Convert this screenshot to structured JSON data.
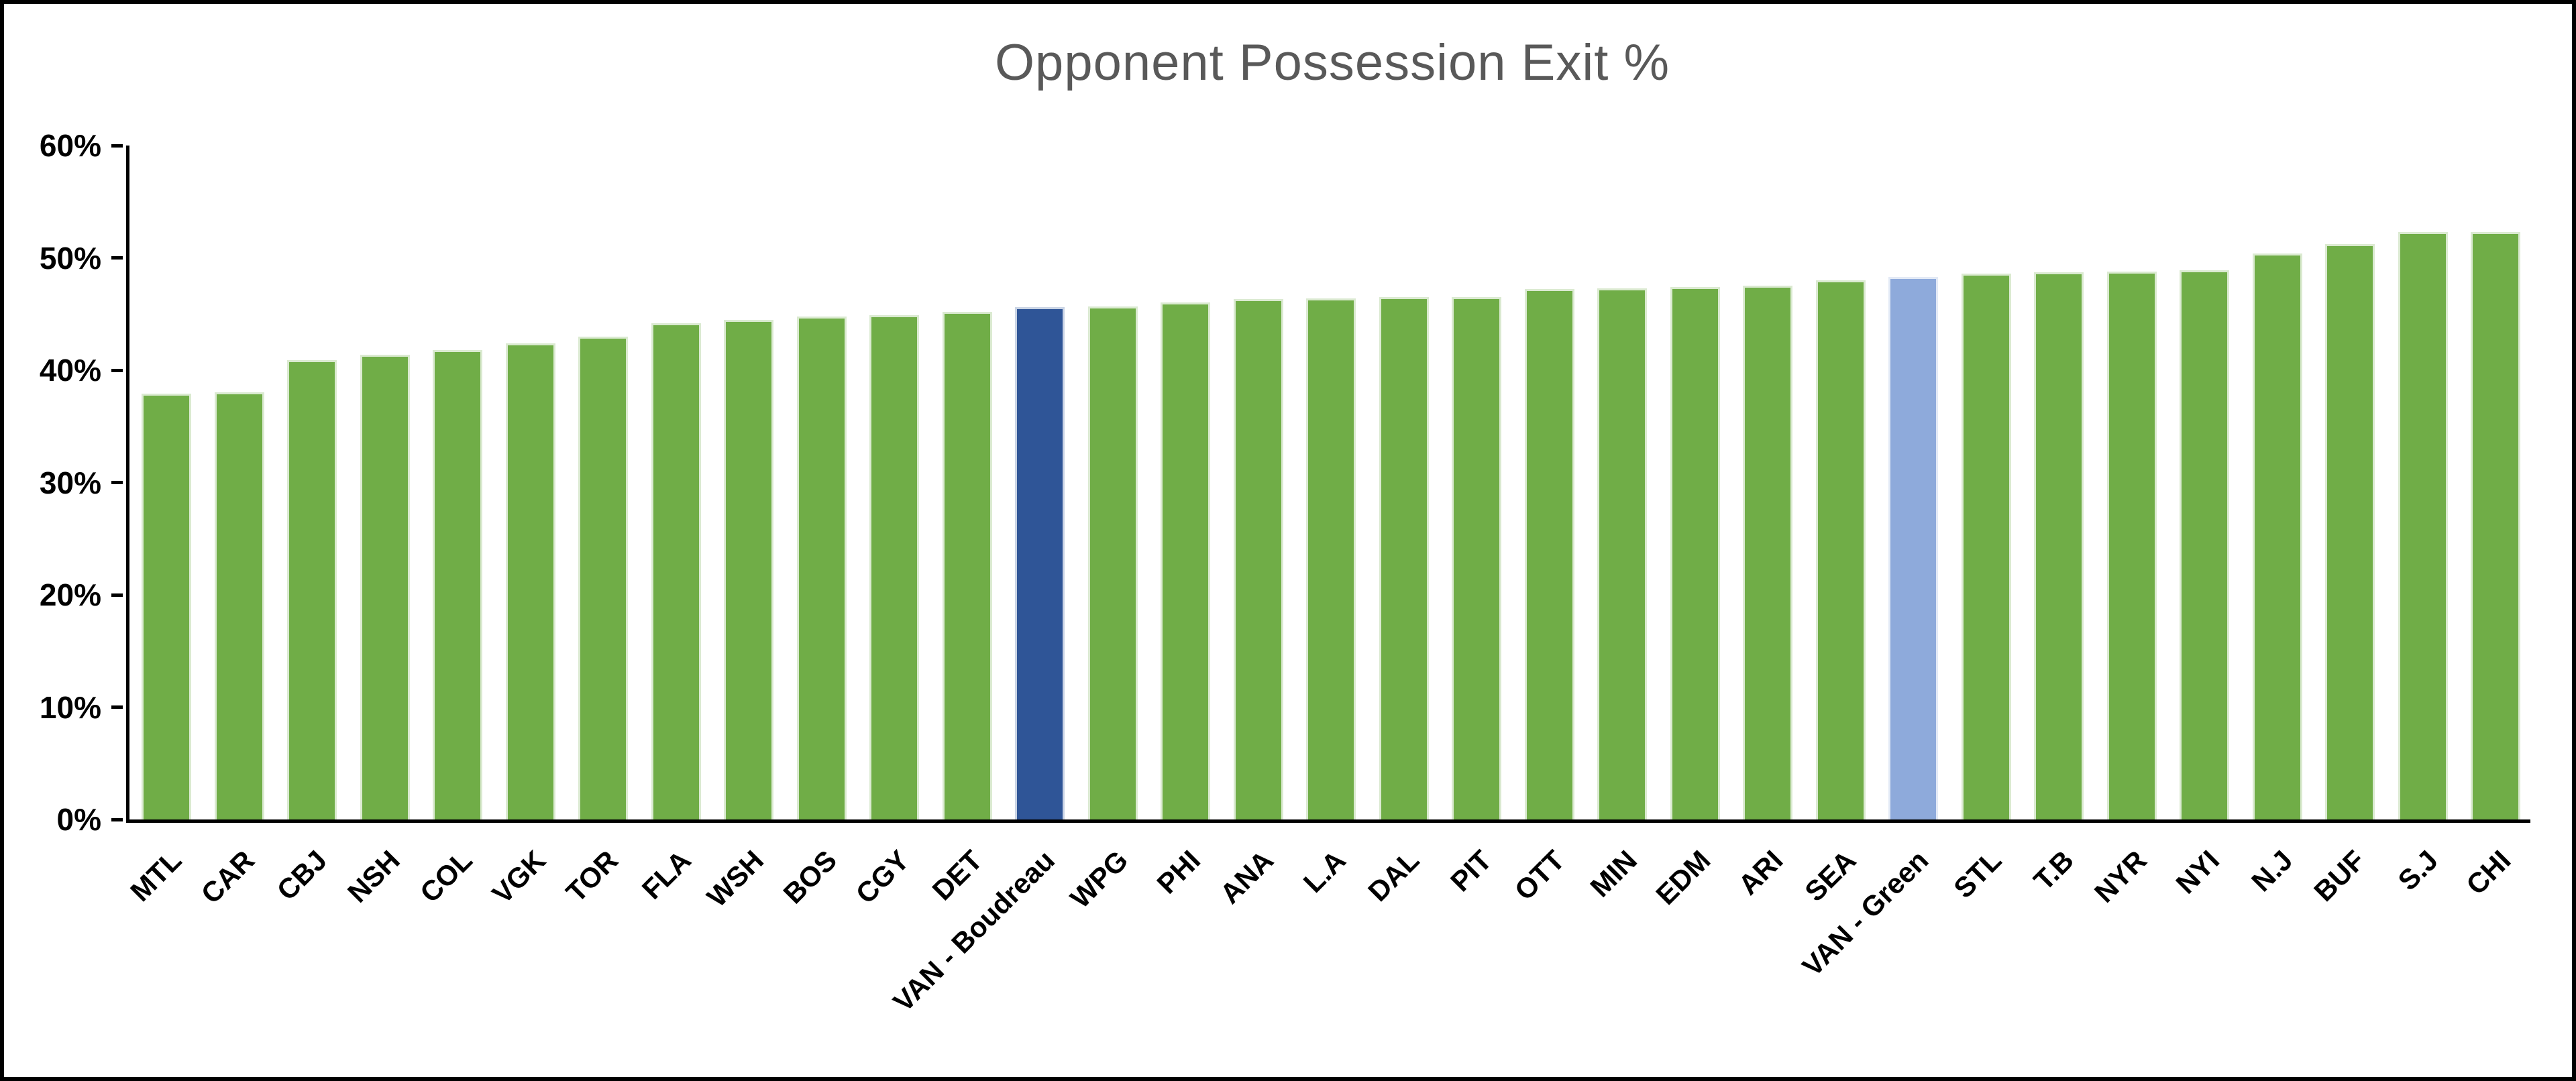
{
  "frame": {
    "border_color": "#000000",
    "background": "#ffffff"
  },
  "chart_data": {
    "type": "bar",
    "title": "Opponent Possession Exit %",
    "title_color": "#595959",
    "xlabel": "",
    "ylabel": "",
    "ylim": [
      0,
      60
    ],
    "grid": false,
    "legend": "none",
    "y_ticks": [
      {
        "label": "0%",
        "value": 0
      },
      {
        "label": "10%",
        "value": 10
      },
      {
        "label": "20%",
        "value": 20
      },
      {
        "label": "30%",
        "value": 30
      },
      {
        "label": "40%",
        "value": 40
      },
      {
        "label": "50%",
        "value": 50
      },
      {
        "label": "60%",
        "value": 60
      }
    ],
    "categories": [
      "MTL",
      "CAR",
      "CBJ",
      "NSH",
      "COL",
      "VGK",
      "TOR",
      "FLA",
      "WSH",
      "BOS",
      "CGY",
      "DET",
      "VAN - Boudreau",
      "WPG",
      "PHI",
      "ANA",
      "L.A",
      "DAL",
      "PIT",
      "OTT",
      "MIN",
      "EDM",
      "ARI",
      "SEA",
      "VAN - Green",
      "STL",
      "T.B",
      "NYR",
      "NYI",
      "N.J",
      "BUF",
      "S.J",
      "CHI"
    ],
    "values": [
      37.9,
      38.0,
      40.9,
      41.4,
      41.8,
      42.4,
      43.0,
      44.2,
      44.5,
      44.8,
      44.9,
      45.2,
      45.6,
      45.7,
      46.0,
      46.3,
      46.4,
      46.5,
      46.5,
      47.2,
      47.3,
      47.4,
      47.5,
      48.0,
      48.3,
      48.6,
      48.7,
      48.8,
      48.9,
      50.4,
      51.2,
      52.3,
      52.3
    ],
    "bar_colors": {
      "default": "#70AD47",
      "VAN - Boudreau": "#2F5597",
      "VAN - Green": "#8EAADB"
    }
  }
}
